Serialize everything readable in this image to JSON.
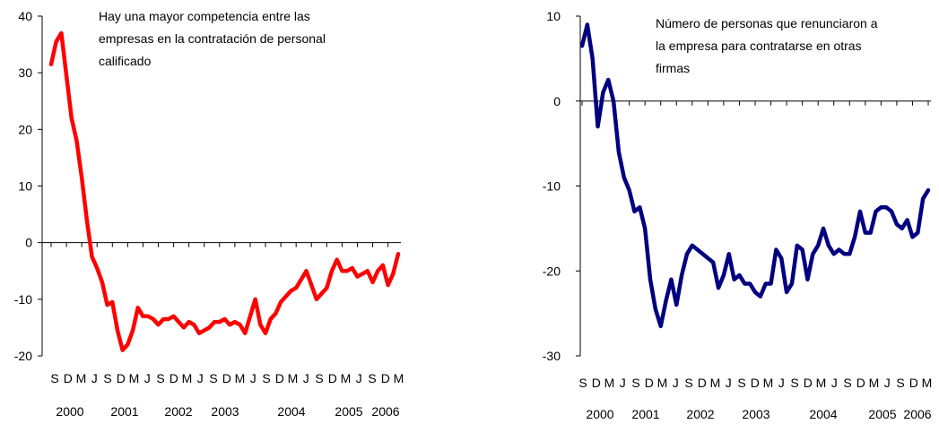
{
  "chart_data": [
    {
      "type": "line",
      "ylim": [
        -20,
        40
      ],
      "y_ticks": [
        "40",
        "30",
        "20",
        "10",
        "0",
        "-10",
        "-20"
      ],
      "annotation_lines": [
        "Hay una mayor competencia entre las",
        "empresas en la contratación de personal",
        "calificado"
      ],
      "month_labels": [
        "S",
        "D",
        "M",
        "J",
        "S",
        "D",
        "M",
        "J",
        "S",
        "D",
        "M",
        "J",
        "S",
        "D",
        "M",
        "J",
        "S",
        "D",
        "M",
        "J",
        "S",
        "D",
        "M",
        "J",
        "S",
        "D",
        "M"
      ],
      "year_labels": [
        "2000",
        "2001",
        "2002",
        "2003",
        "2004",
        "2005",
        "2006"
      ],
      "series": [
        {
          "color": "#ff0000",
          "values": [
            31.5,
            35.5,
            37,
            29.5,
            22,
            18,
            11.5,
            4,
            -2.5,
            -4.5,
            -7,
            -11,
            -10.5,
            -15.5,
            -19,
            -18,
            -15.5,
            -11.5,
            -13,
            -13,
            -13.5,
            -14.5,
            -13.5,
            -13.5,
            -13,
            -14,
            -15,
            -14,
            -14.5,
            -16,
            -15.5,
            -15,
            -14,
            -14,
            -13.5,
            -14.5,
            -14,
            -14.5,
            -16,
            -13,
            -10,
            -14.5,
            -16,
            -13.5,
            -12.5,
            -10.5,
            -9.5,
            -8.5,
            -8,
            -6.5,
            -5,
            -7.5,
            -10,
            -9,
            -8,
            -5,
            -3,
            -5,
            -5,
            -4.5,
            -6,
            -5.5,
            -5,
            -7,
            -5,
            -4,
            -7.5,
            -5.5,
            -2
          ]
        }
      ]
    },
    {
      "type": "line",
      "ylim": [
        -30,
        10
      ],
      "y_ticks": [
        "10",
        "0",
        "-10",
        "-20",
        "-30"
      ],
      "annotation_lines": [
        "Número de personas que renunciaron a",
        "la empresa para contratarse en otras",
        "firmas"
      ],
      "month_labels": [
        "S",
        "D",
        "M",
        "J",
        "S",
        "D",
        "M",
        "J",
        "S",
        "D",
        "M",
        "J",
        "S",
        "D",
        "M",
        "J",
        "S",
        "D",
        "M",
        "J",
        "S",
        "D",
        "M",
        "J",
        "S",
        "D",
        "M"
      ],
      "year_labels": [
        "2000",
        "2001",
        "2002",
        "2003",
        "2004",
        "2005",
        "2006"
      ],
      "series": [
        {
          "color": "#000080",
          "values": [
            6.5,
            9,
            5,
            -3,
            1,
            2.5,
            0,
            -6,
            -9,
            -10.5,
            -13,
            -12.5,
            -15,
            -21,
            -24.5,
            -26.5,
            -23.5,
            -21,
            -24,
            -20.5,
            -18,
            -17,
            -17.5,
            -18,
            -18.5,
            -19,
            -22,
            -20.5,
            -18,
            -21,
            -20.5,
            -21.5,
            -21.5,
            -22.5,
            -23,
            -21.5,
            -21.5,
            -17.5,
            -18.5,
            -22.5,
            -21.5,
            -17,
            -17.5,
            -21,
            -18,
            -17,
            -15,
            -17,
            -18,
            -17.5,
            -18,
            -18,
            -16,
            -13,
            -15.5,
            -15.5,
            -13,
            -12.5,
            -12.5,
            -13,
            -14.5,
            -15,
            -14,
            -16,
            -15.5,
            -11.5,
            -10.5
          ]
        }
      ]
    }
  ]
}
